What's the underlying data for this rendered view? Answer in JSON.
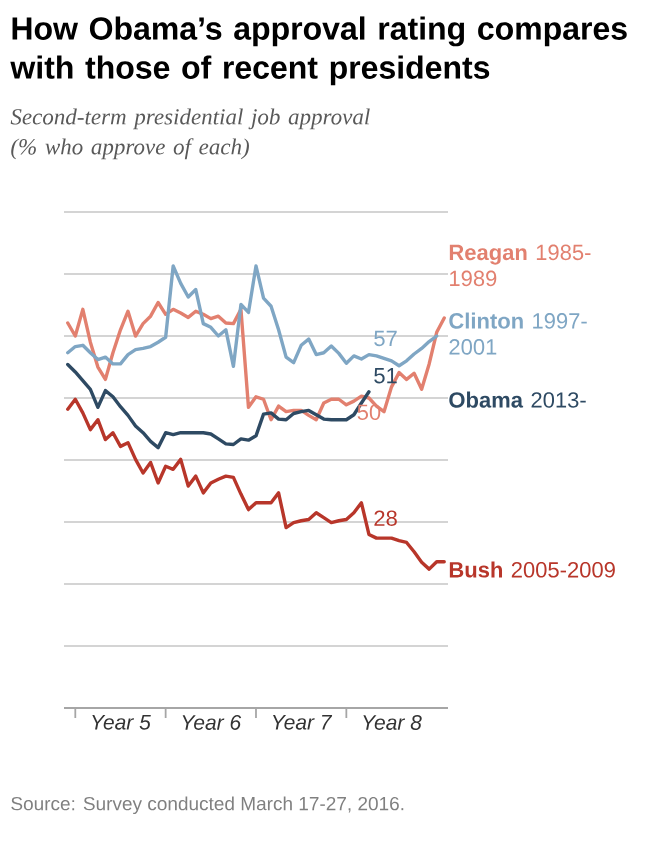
{
  "chart_data": {
    "type": "line",
    "title": "How Obama’s approval rating compares with those of recent presidents",
    "subtitle": "Second-term presidential job approval (% who approve of each)",
    "annotations": [
      "Source: Survey conducted March 17-27, 2016."
    ],
    "categories": [
      null,
      null,
      null,
      null,
      null,
      null,
      null,
      "Year 5",
      null,
      null,
      null,
      null,
      null,
      null,
      null,
      null,
      null,
      null,
      null,
      "Year 6",
      null,
      null,
      null,
      null,
      null,
      null,
      null,
      null,
      null,
      null,
      null,
      "Year 7",
      null,
      null,
      null,
      null,
      null,
      null,
      null,
      null,
      null,
      null,
      null,
      "Year 8",
      null,
      null,
      null,
      null,
      null,
      null,
      null
    ],
    "ylim": [
      0,
      80
    ],
    "yticks": [
      {
        "value": 0,
        "label": null
      },
      {
        "value": 10,
        "label": null
      },
      {
        "value": 20,
        "label": null
      },
      {
        "value": 30,
        "label": null
      },
      {
        "value": 40,
        "label": null
      },
      {
        "value": 50,
        "label": null
      },
      {
        "value": 60,
        "label": null
      },
      {
        "value": 70,
        "label": null
      },
      {
        "value": 80,
        "label": null
      }
    ],
    "grid": "y",
    "tick_labels": "x",
    "series": [
      {
        "name": "**Reagan** 1985-1989",
        "color": "#e2806f",
        "values": [
          62.1,
          60.0,
          64.3,
          59,
          55,
          53.0,
          57.3,
          61,
          64,
          60.0,
          62,
          63.2,
          65.4,
          63.5,
          64.3,
          63.7,
          63,
          64,
          63.5,
          62.8,
          63.2,
          62.1,
          62,
          64.3,
          48.5,
          50.2,
          49.8,
          46.5,
          48.7,
          47.8,
          48,
          48,
          47.2,
          46.5,
          49.2,
          49.8,
          49.8,
          48.9,
          49.5,
          50.3,
          50,
          48.7,
          47.8,
          51.8,
          54.1,
          53.0,
          54,
          51.4,
          55.5,
          60.6,
          62.9
        ],
        "value_labels": [
          null,
          null,
          null,
          null,
          null,
          null,
          null,
          null,
          null,
          null,
          null,
          null,
          null,
          null,
          null,
          null,
          null,
          null,
          null,
          null,
          null,
          null,
          null,
          null,
          null,
          null,
          null,
          null,
          null,
          null,
          null,
          null,
          null,
          null,
          null,
          null,
          null,
          null,
          null,
          null,
          "50",
          null,
          null,
          null,
          null,
          null,
          null,
          null,
          null,
          null,
          null
        ]
      },
      {
        "name": "**Clinton** 1997-2001",
        "color": "#7fa6c4",
        "values": [
          57.3,
          58.3,
          58.5,
          57.3,
          56.2,
          56.6,
          55.5,
          55.5,
          57,
          57.8,
          58,
          58.3,
          59,
          59.8,
          71.3,
          68.5,
          66.3,
          67.5,
          62,
          61.4,
          60,
          61,
          55.1,
          65.1,
          63.8,
          71.3,
          66.1,
          64.8,
          61,
          56.6,
          55.7,
          58.5,
          59.5,
          57,
          57.3,
          58.4,
          57.2,
          55.6,
          56.8,
          56.3,
          57,
          56.8,
          56.4,
          56,
          55.2,
          56,
          57.1,
          58,
          59.1,
          60.0,
          null
        ],
        "value_labels": [
          null,
          null,
          null,
          null,
          null,
          null,
          null,
          null,
          null,
          null,
          null,
          null,
          null,
          null,
          null,
          null,
          null,
          null,
          null,
          null,
          null,
          null,
          null,
          null,
          null,
          null,
          null,
          null,
          null,
          null,
          null,
          null,
          null,
          null,
          null,
          null,
          null,
          null,
          null,
          null,
          "57",
          null,
          null,
          null,
          null,
          null,
          null,
          null,
          null,
          null,
          null
        ]
      },
      {
        "name": "**Obama** 2013-",
        "color": "#2e4a63",
        "values": [
          55.4,
          54.2,
          52.8,
          51.4,
          48.5,
          51.2,
          50.2,
          48.6,
          47.2,
          45.5,
          44.4,
          43.0,
          42,
          44.4,
          44.1,
          44.4,
          44.4,
          44.4,
          44.4,
          44.2,
          43.4,
          42.6,
          42.5,
          43.4,
          43.2,
          43.9,
          47.4,
          47.6,
          46.6,
          46.5,
          47.5,
          47.8,
          48,
          47.3,
          46.6,
          46.5,
          46.5,
          46.5,
          47.3,
          49.2,
          51,
          null,
          null,
          null,
          null,
          null,
          null,
          null,
          null,
          null,
          null
        ],
        "value_labels": [
          null,
          null,
          null,
          null,
          null,
          null,
          null,
          null,
          null,
          null,
          null,
          null,
          null,
          null,
          null,
          null,
          null,
          null,
          null,
          null,
          null,
          null,
          null,
          null,
          null,
          null,
          null,
          null,
          null,
          null,
          null,
          null,
          null,
          null,
          null,
          null,
          null,
          null,
          null,
          null,
          "51",
          null,
          null,
          null,
          null,
          null,
          null,
          null,
          null,
          null,
          null
        ]
      },
      {
        "name": "**Bush** 2005-2009",
        "color": "#b8362a",
        "values": [
          48.2,
          49.8,
          47.6,
          44.9,
          46.5,
          43.3,
          44.4,
          42.2,
          42.8,
          40.1,
          37.9,
          39.6,
          36.3,
          39.0,
          38.5,
          40.1,
          35.8,
          37.4,
          34.7,
          36.3,
          36.9,
          37.4,
          37.2,
          34.5,
          32.0,
          33.1,
          33.1,
          33.1,
          34.7,
          29.1,
          29.9,
          30.2,
          30.4,
          31.5,
          30.7,
          29.9,
          30.2,
          30.4,
          31.5,
          33.1,
          28,
          27.4,
          27.4,
          27.4,
          27,
          26.7,
          25.2,
          23.5,
          22.4,
          23.6,
          23.6
        ],
        "value_labels": [
          null,
          null,
          null,
          null,
          null,
          null,
          null,
          null,
          null,
          null,
          null,
          null,
          null,
          null,
          null,
          null,
          null,
          null,
          null,
          null,
          null,
          null,
          null,
          null,
          null,
          null,
          null,
          null,
          null,
          null,
          null,
          null,
          null,
          null,
          null,
          null,
          null,
          null,
          null,
          null,
          "28",
          null,
          null,
          null,
          null,
          null,
          null,
          null,
          null,
          null,
          null
        ]
      }
    ]
  }
}
